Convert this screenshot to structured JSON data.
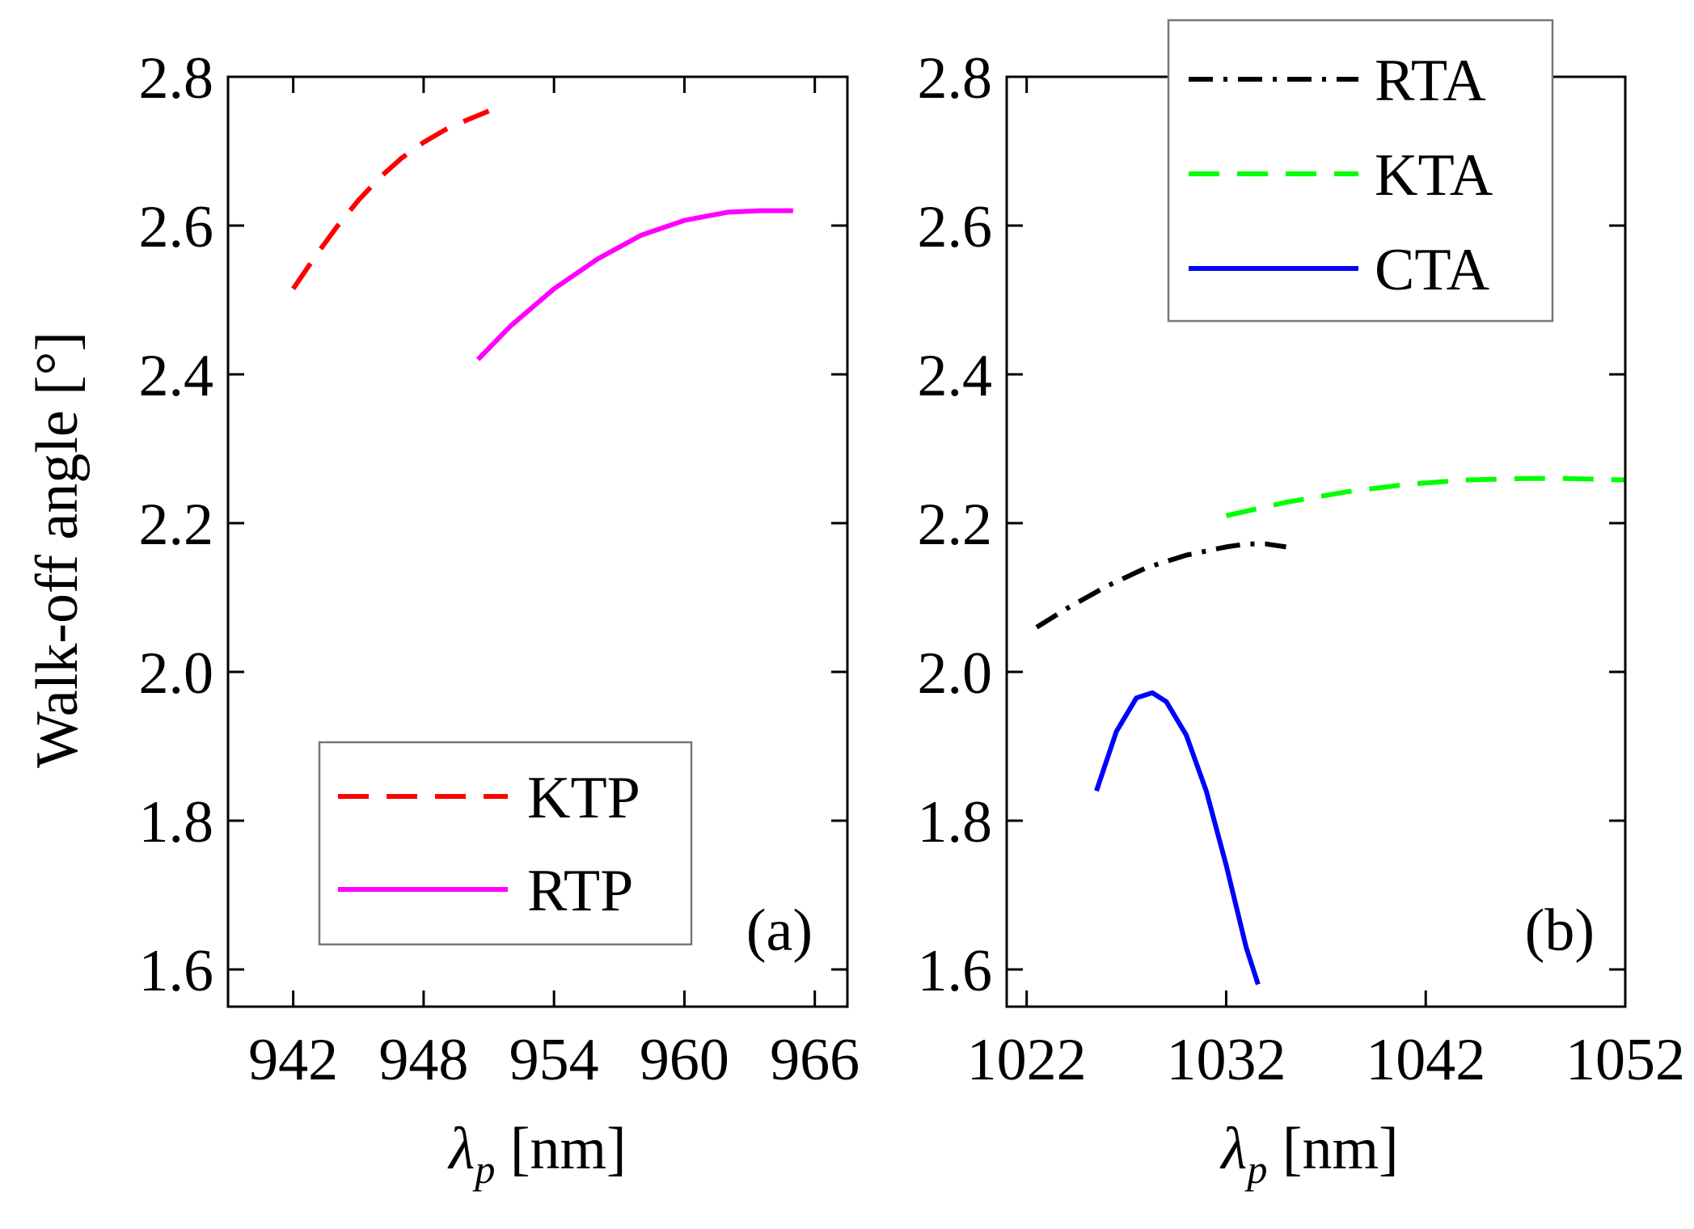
{
  "chart_data": [
    {
      "type": "line",
      "panel_label": "(a)",
      "xlabel": "λp [nm]",
      "xlabel_symbol": "λ",
      "xlabel_subscript": "p",
      "xlabel_unit": "[nm]",
      "ylabel": "Walk-off angle [°]",
      "xlim": [
        939,
        967.5
      ],
      "ylim": [
        1.55,
        2.8
      ],
      "xticks": [
        942,
        948,
        954,
        960,
        966
      ],
      "yticks": [
        1.6,
        1.8,
        2.0,
        2.2,
        2.4,
        2.6,
        2.8
      ],
      "ytick_labels": [
        "1.6",
        "1.8",
        "2.0",
        "2.2",
        "2.4",
        "2.6",
        "2.8"
      ],
      "legend_position": "lower-center",
      "series": [
        {
          "name": "KTP",
          "color": "#ff0000",
          "style": "dashed",
          "x": [
            942,
            943,
            944,
            945,
            946,
            947,
            948,
            949,
            950,
            951
          ],
          "y": [
            2.515,
            2.558,
            2.598,
            2.634,
            2.665,
            2.691,
            2.712,
            2.729,
            2.742,
            2.754
          ]
        },
        {
          "name": "RTP",
          "color": "#ff00ff",
          "style": "solid",
          "x": [
            950.5,
            952,
            954,
            956,
            958,
            960,
            962,
            963.5,
            965
          ],
          "y": [
            2.42,
            2.465,
            2.515,
            2.555,
            2.587,
            2.607,
            2.618,
            2.62,
            2.62
          ]
        }
      ]
    },
    {
      "type": "line",
      "panel_label": "(b)",
      "xlabel": "λp [nm]",
      "xlabel_symbol": "λ",
      "xlabel_subscript": "p",
      "xlabel_unit": "[nm]",
      "ylabel": "",
      "xlim": [
        1021,
        1052
      ],
      "ylim": [
        1.55,
        2.8
      ],
      "xticks": [
        1022,
        1032,
        1042,
        1052
      ],
      "yticks": [
        1.6,
        1.8,
        2.0,
        2.2,
        2.4,
        2.6,
        2.8
      ],
      "ytick_labels": [
        "1.6",
        "1.8",
        "2.0",
        "2.2",
        "2.4",
        "2.6",
        "2.8"
      ],
      "legend_position": "top-right",
      "series": [
        {
          "name": "RTA",
          "color": "#000000",
          "style": "dashdot",
          "x": [
            1022.5,
            1024,
            1026,
            1028,
            1030,
            1032,
            1033,
            1034,
            1035
          ],
          "y": [
            2.06,
            2.085,
            2.115,
            2.14,
            2.157,
            2.168,
            2.172,
            2.172,
            2.168
          ]
        },
        {
          "name": "KTA",
          "color": "#00ff00",
          "style": "dashed",
          "x": [
            1032,
            1035,
            1038,
            1041,
            1044,
            1047,
            1049,
            1052
          ],
          "y": [
            2.21,
            2.228,
            2.242,
            2.252,
            2.258,
            2.26,
            2.26,
            2.258
          ]
        },
        {
          "name": "CTA",
          "color": "#0000ff",
          "style": "solid",
          "x": [
            1025.5,
            1026.5,
            1027.5,
            1028.3,
            1029,
            1030,
            1031,
            1032,
            1033,
            1033.6
          ],
          "y": [
            1.84,
            1.92,
            1.965,
            1.972,
            1.96,
            1.915,
            1.84,
            1.74,
            1.63,
            1.58
          ]
        }
      ]
    }
  ]
}
